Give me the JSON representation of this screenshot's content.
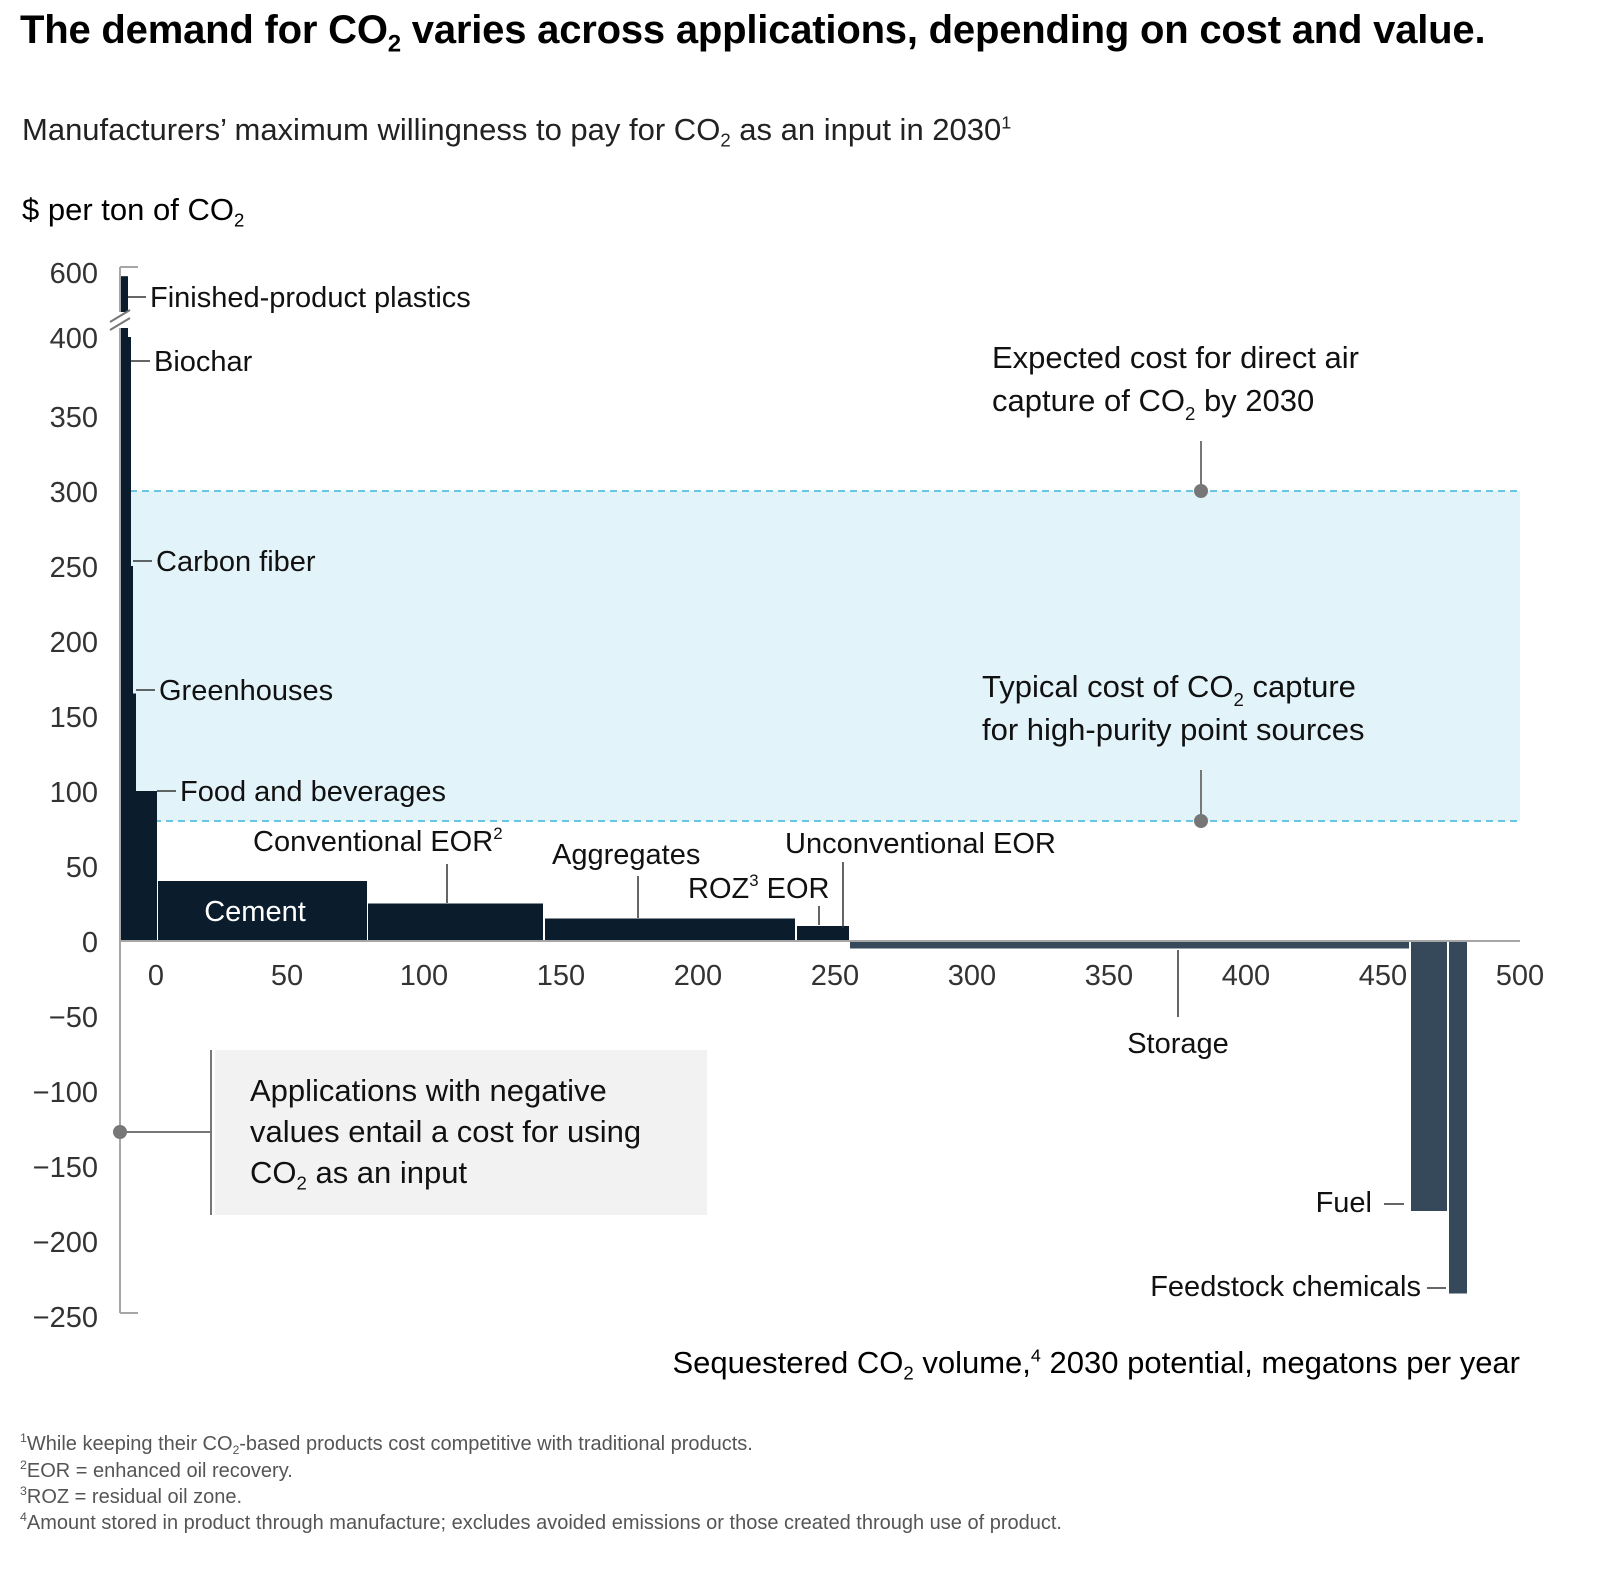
{
  "title": {
    "pre": "The demand for CO",
    "sub": "2",
    "post": " varies across applications, depending on cost and value."
  },
  "subtitle": {
    "pre": "Manufacturers’ maximum willingness to pay for CO",
    "sub": "2",
    "mid": " as an input in 2030",
    "sup": "1"
  },
  "y_axis_label": {
    "pre": "$ per ton of CO",
    "sub": "2"
  },
  "x_axis_label": {
    "pre": "Sequestered CO",
    "sub": "2",
    "mid": " volume,",
    "sup": "4",
    "post": " 2030 potential, megatons per year"
  },
  "callout": {
    "pre": "Applications with negative values entail a cost for using CO",
    "sub": "2",
    "post": " as an input"
  },
  "band_labels": {
    "dac": {
      "line1": "Expected cost for direct air",
      "line2_pre": "capture of CO",
      "line2_sub": "2",
      "line2_post": " by 2030"
    },
    "point": {
      "line1_pre": "Typical cost of CO",
      "line1_sub": "2",
      "line1_post": " capture",
      "line2": "for high-purity point sources"
    }
  },
  "footnotes": [
    {
      "sup": "1",
      "pre": "While keeping their CO",
      "sub": "2",
      "post": "-based products cost competitive with traditional products."
    },
    {
      "sup": "2",
      "pre": "EOR = enhanced oil recovery.",
      "sub": "",
      "post": ""
    },
    {
      "sup": "3",
      "pre": "ROZ = residual oil zone.",
      "sub": "",
      "post": ""
    },
    {
      "sup": "4",
      "pre": "Amount stored in product through manufacture; excludes avoided emissions or those created through use of product.",
      "sub": "",
      "post": ""
    }
  ],
  "colors": {
    "bar_positive": "#0b1d2d",
    "bar_negative": "#35495a",
    "band_fill": "#e2f4fa",
    "band_line": "#3fb2dc",
    "axis": "#a6a6a6",
    "marker": "#777777"
  },
  "chart_data": {
    "type": "bar",
    "subtype": "variable-width marginal abatement style",
    "title": "The demand for CO2 varies across applications, depending on cost and value.",
    "xlabel": "Sequestered CO2 volume, 2030 potential, megatons per year",
    "ylabel": "$ per ton of CO2",
    "xlim": [
      -12,
      500
    ],
    "ylim": [
      -250,
      600
    ],
    "y_axis_break": [
      400,
      600
    ],
    "x_ticks": [
      0,
      50,
      100,
      150,
      200,
      250,
      300,
      350,
      400,
      450,
      500
    ],
    "y_ticks": [
      600,
      400,
      350,
      300,
      250,
      200,
      150,
      100,
      50,
      0,
      -50,
      -100,
      -150,
      -200,
      -250
    ],
    "reference_band": {
      "low": 80,
      "high": 300,
      "low_label": "Typical cost of CO2 capture for high-purity point sources",
      "high_label": "Expected cost for direct air capture of CO2 by 2030"
    },
    "bars": [
      {
        "name": "Finished-product plastics",
        "x_start": -12,
        "x_end": -10,
        "value": 590
      },
      {
        "name": "Biochar",
        "x_start": -10,
        "x_end": -9,
        "value": 400
      },
      {
        "name": "Carbon fiber",
        "x_start": -9,
        "x_end": -8,
        "value": 250
      },
      {
        "name": "Greenhouses",
        "x_start": -8,
        "x_end": -7,
        "value": 165
      },
      {
        "name": "Food and beverages",
        "x_start": -7,
        "x_end": 1,
        "value": 100
      },
      {
        "name": "Cement",
        "x_start": 1,
        "x_end": 76,
        "value": 40
      },
      {
        "name": "Conventional EOR",
        "x_start": 76,
        "x_end": 139,
        "value": 25
      },
      {
        "name": "Aggregates",
        "x_start": 139,
        "x_end": 229,
        "value": 15
      },
      {
        "name": "ROZ EOR",
        "x_start": 229,
        "x_end": 245,
        "value": 10
      },
      {
        "name": "Unconventional EOR",
        "x_start": 245,
        "x_end": 248,
        "value": 10
      },
      {
        "name": "Storage",
        "x_start": 248,
        "x_end": 448,
        "value": -5
      },
      {
        "name": "Fuel",
        "x_start": 448,
        "x_end": 462,
        "value": -180
      },
      {
        "name": "Feedstock chemicals",
        "x_start": 462,
        "x_end": 469,
        "value": -235
      }
    ],
    "bar_labels": {
      "plastics": "Finished-product plastics",
      "biochar": "Biochar",
      "carbon_fiber": "Carbon fiber",
      "greenhouses": "Greenhouses",
      "food": "Food and beverages",
      "cement": "Cement",
      "conv_eor": {
        "text": "Conventional EOR",
        "sup": "2"
      },
      "aggregates": "Aggregates",
      "roz": {
        "pre": "ROZ",
        "sup": "3",
        "post": " EOR"
      },
      "unconv_eor": "Unconventional EOR",
      "storage": "Storage",
      "fuel": "Fuel",
      "feedstock": "Feedstock chemicals"
    }
  }
}
